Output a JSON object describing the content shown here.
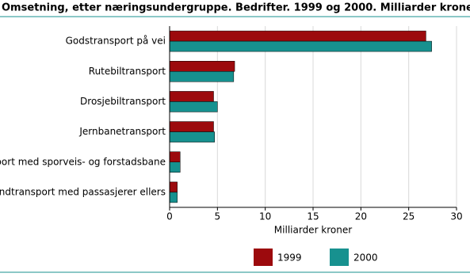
{
  "chart_data": {
    "type": "hbar",
    "title": "Omsetning, etter næringsundergruppe. Bedrifter. 1999 og 2000. Milliarder kroner",
    "x_label": "Milliarder kroner",
    "categories": [
      "Godstransport på vei",
      "Rutebiltransport",
      "Drosjebiltransport",
      "Jernbanetransport",
      "Transport med sporveis- og forstadsbane",
      "Landtransport med passasjerer ellers"
    ],
    "series": [
      {
        "name": "1999",
        "color": "#9c0a0d",
        "values": [
          26.8,
          6.8,
          4.6,
          4.6,
          1.1,
          0.8
        ]
      },
      {
        "name": "2000",
        "color": "#17918f",
        "values": [
          27.4,
          6.7,
          5.0,
          4.7,
          1.1,
          0.8
        ]
      }
    ],
    "xlim": [
      0,
      30
    ],
    "xticks": [
      0,
      5,
      10,
      15,
      20,
      25,
      30
    ],
    "grid": true,
    "legend": "bottom"
  }
}
